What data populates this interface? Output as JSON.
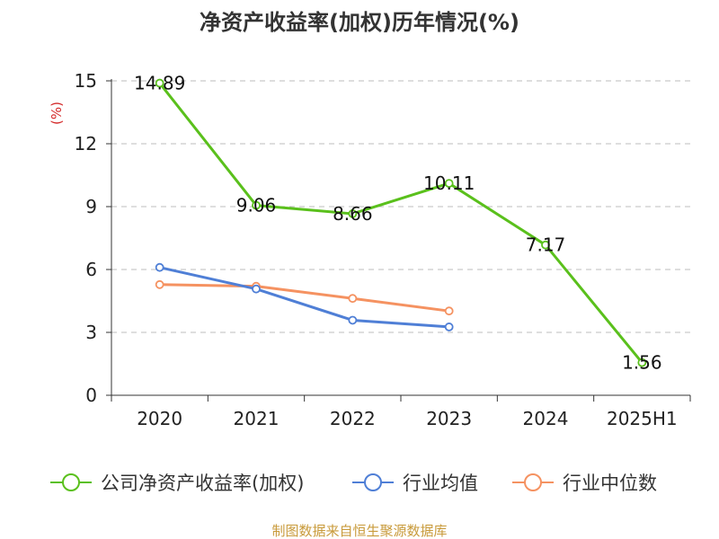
{
  "chart_data": {
    "type": "line",
    "title": "净资产收益率(加权)历年情况(%)",
    "ylabel": "(%)",
    "xlabel": "",
    "categories": [
      "2020",
      "2021",
      "2022",
      "2023",
      "2024",
      "2025H1"
    ],
    "ylim": [
      0,
      15
    ],
    "yticks": [
      0,
      3,
      6,
      9,
      12,
      15
    ],
    "grid": true,
    "legend_position": "bottom",
    "series": [
      {
        "name": "公司净资产收益率(加权)",
        "color": "#5ac01c",
        "values": [
          14.89,
          9.06,
          8.66,
          10.11,
          7.17,
          1.56
        ],
        "labels": [
          "14.89",
          "9.06",
          "8.66",
          "10.11",
          "7.17",
          "1.56"
        ]
      },
      {
        "name": "行业均值",
        "color": "#4f7fd6",
        "values": [
          6.1,
          5.07,
          3.58,
          3.26,
          null,
          null
        ]
      },
      {
        "name": "行业中位数",
        "color": "#f59261",
        "values": [
          5.28,
          5.2,
          4.62,
          4.02,
          null,
          null
        ]
      }
    ]
  },
  "source_text": "制图数据来自恒生聚源数据库"
}
